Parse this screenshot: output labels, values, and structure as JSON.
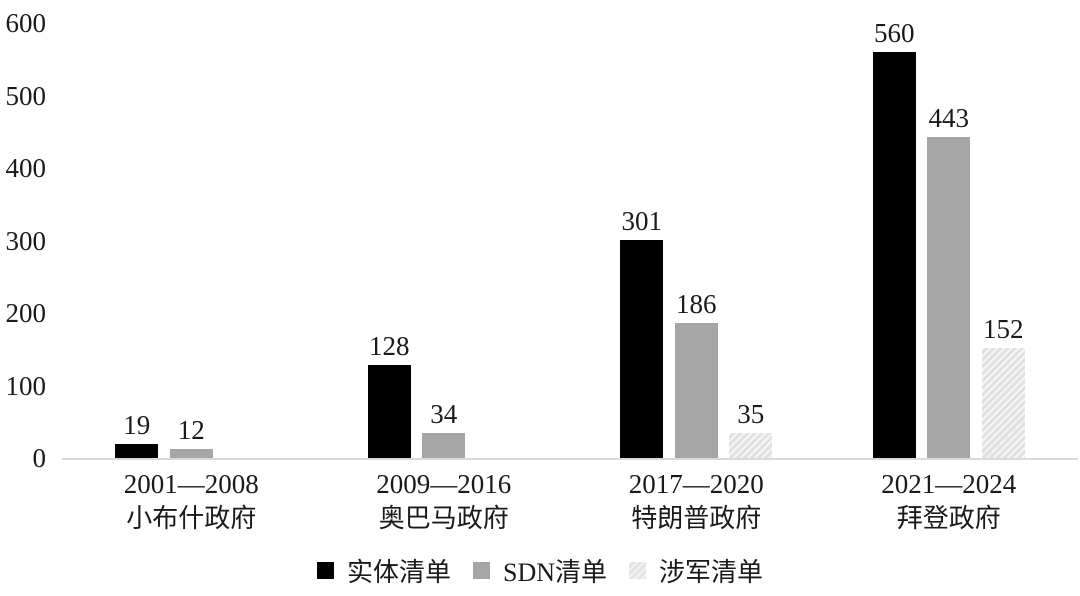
{
  "chart_data": {
    "type": "bar",
    "title": "",
    "categories": [
      "2001—2008",
      "2009—2016",
      "2017—2020",
      "2021—2024"
    ],
    "category_sublabels": [
      "小布什政府",
      "奥巴马政府",
      "特朗普政府",
      "拜登政府"
    ],
    "series": [
      {
        "name": "实体清单",
        "color": "#000000",
        "style": "solid",
        "values": [
          19,
          128,
          301,
          560
        ]
      },
      {
        "name": "SDN清单",
        "color": "#a6a6a6",
        "style": "solid",
        "values": [
          12,
          34,
          186,
          443
        ]
      },
      {
        "name": "涉军清单",
        "color": "#e0e0e0",
        "style": "hatched",
        "values": [
          null,
          null,
          35,
          152
        ]
      }
    ],
    "value_labels_shown": true,
    "ylim": [
      0,
      600
    ],
    "yticks": [
      0,
      100,
      200,
      300,
      400,
      500,
      600
    ],
    "grid": false,
    "legend_position": "bottom",
    "axis_line_color": "#d9d9d9",
    "text_color": "#1a1a1a"
  }
}
